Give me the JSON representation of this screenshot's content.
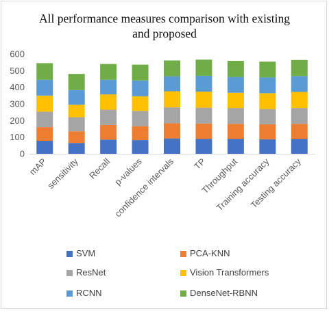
{
  "chart_data": {
    "type": "bar",
    "stacked": true,
    "title": "All performance measures comparison with existing and proposed",
    "title_lines": [
      "All performance measures comparison with existing",
      "and proposed"
    ],
    "xlabel": "",
    "ylabel": "",
    "ylim": [
      0,
      600
    ],
    "yticks": [
      0,
      100,
      200,
      300,
      400,
      500,
      600
    ],
    "grid": false,
    "legend_position": "bottom",
    "categories": [
      "mAP",
      "sensitivity",
      "Recall",
      "p-values",
      "confidence intervals",
      "TP",
      "Throughput",
      "Training accuracy",
      "Testing accuracy"
    ],
    "series": [
      {
        "name": "SVM",
        "color": "#4472C4",
        "values": [
          78,
          65,
          85,
          82,
          92,
          90,
          90,
          87,
          90
        ]
      },
      {
        "name": "PCA-KNN",
        "color": "#ED7D31",
        "values": [
          82,
          70,
          88,
          84,
          92,
          92,
          90,
          90,
          90
        ]
      },
      {
        "name": "ResNet",
        "color": "#A5A5A5",
        "values": [
          93,
          85,
          92,
          92,
          95,
          95,
          95,
          92,
          95
        ]
      },
      {
        "name": "Vision Transformers",
        "color": "#FFC000",
        "values": [
          97,
          75,
          92,
          88,
          97,
          97,
          92,
          95,
          97
        ]
      },
      {
        "name": "RCNN",
        "color": "#5B9BD5",
        "values": [
          95,
          88,
          88,
          95,
          90,
          95,
          95,
          95,
          95
        ]
      },
      {
        "name": "DenseNet-RBNN",
        "color": "#70AD47",
        "values": [
          100,
          97,
          95,
          95,
          95,
          97,
          97,
          95,
          97
        ]
      }
    ]
  }
}
